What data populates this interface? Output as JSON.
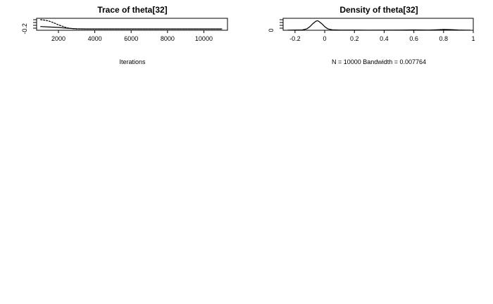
{
  "chart_data": [
    {
      "type": "line",
      "title": "Trace of theta[32]",
      "xlabel": "Iterations",
      "ylabel": "",
      "xlim": [
        800,
        11300
      ],
      "ylim": [
        -0.27,
        0.28
      ],
      "x_ticks": [
        2000,
        4000,
        6000,
        8000,
        10000
      ],
      "y_ticks": [
        -0.2
      ],
      "series": [
        {
          "x": [
            1000,
            1200,
            1400,
            1600,
            1800,
            2000,
            2200,
            2400,
            2600,
            2800,
            3000,
            3500,
            4000,
            5000,
            6000,
            7000,
            8000,
            9000,
            10000,
            11000
          ],
          "values": [
            0.22,
            0.2,
            0.17,
            0.12,
            0.05,
            -0.02,
            -0.08,
            -0.14,
            -0.18,
            -0.2,
            -0.21,
            -0.21,
            -0.21,
            -0.21,
            -0.21,
            -0.21,
            -0.21,
            -0.21,
            -0.21,
            -0.21
          ]
        },
        {
          "x": [
            1000,
            1500,
            2000,
            2500,
            3000,
            3500,
            4000,
            5000,
            6000,
            7000,
            8000,
            9000,
            10000,
            11000
          ],
          "values": [
            -0.1,
            -0.12,
            -0.14,
            -0.18,
            -0.2,
            -0.21,
            -0.21,
            -0.21,
            -0.21,
            -0.21,
            -0.21,
            -0.21,
            -0.21,
            -0.21
          ]
        }
      ]
    },
    {
      "type": "line",
      "title": "Density of theta[32]",
      "xlabel": "N = 10000   Bandwidth = 0.007764",
      "ylabel": "",
      "xlim": [
        -0.28,
        1.0
      ],
      "ylim": [
        0,
        20
      ],
      "x_ticks": [
        -0.2,
        0.0,
        0.2,
        0.4,
        0.6,
        0.8,
        1.0
      ],
      "y_ticks": [
        0
      ],
      "series": [
        {
          "x": [
            -0.25,
            -0.15,
            -0.12,
            -0.1,
            -0.08,
            -0.06,
            -0.05,
            -0.04,
            -0.02,
            0.0,
            0.02,
            0.05,
            0.1,
            0.3,
            0.5,
            0.6,
            0.7,
            0.75,
            0.8,
            0.85,
            0.9,
            0.95,
            0.98
          ],
          "values": [
            0.2,
            0.6,
            2.5,
            6,
            11,
            15,
            16,
            15,
            11,
            6,
            2.5,
            0.8,
            0.3,
            0.2,
            0.3,
            0.6,
            0.4,
            0.8,
            1.4,
            1.0,
            0.5,
            0.2,
            0.1
          ]
        }
      ]
    }
  ]
}
